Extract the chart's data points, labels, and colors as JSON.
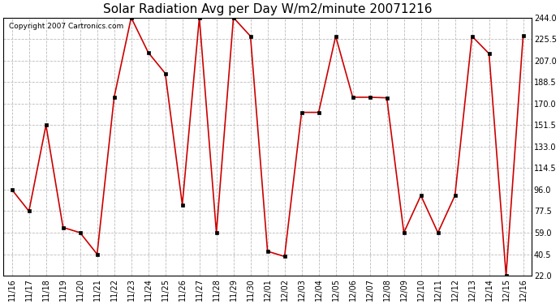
{
  "title": "Solar Radiation Avg per Day W/m2/minute 20071216",
  "copyright_text": "Copyright 2007 Cartronics.com",
  "labels": [
    "11/16",
    "11/17",
    "11/18",
    "11/19",
    "11/20",
    "11/21",
    "11/22",
    "11/23",
    "11/24",
    "11/25",
    "11/26",
    "11/27",
    "11/28",
    "11/29",
    "11/30",
    "12/01",
    "12/02",
    "12/03",
    "12/04",
    "12/05",
    "12/06",
    "12/07",
    "12/08",
    "12/09",
    "12/10",
    "12/11",
    "12/12",
    "12/13",
    "12/14",
    "12/15",
    "12/16"
  ],
  "values": [
    96.0,
    77.5,
    151.5,
    63.5,
    59.0,
    40.5,
    175.5,
    244.0,
    214.0,
    196.0,
    83.0,
    244.0,
    59.0,
    244.0,
    228.0,
    43.0,
    38.5,
    162.5,
    162.5,
    228.0,
    175.5,
    175.5,
    175.0,
    59.0,
    91.0,
    59.0,
    91.0,
    228.0,
    213.0,
    22.0,
    228.5
  ],
  "ylim_min": 22.0,
  "ylim_max": 244.0,
  "yticks": [
    22.0,
    40.5,
    59.0,
    77.5,
    96.0,
    114.5,
    133.0,
    151.5,
    170.0,
    188.5,
    207.0,
    225.5,
    244.0
  ],
  "line_color": "#cc0000",
  "marker": "s",
  "marker_color": "#000000",
  "marker_size": 3,
  "bg_color": "#ffffff",
  "grid_color": "#bbbbbb",
  "title_fontsize": 11,
  "tick_fontsize": 7,
  "copyright_fontsize": 6.5
}
